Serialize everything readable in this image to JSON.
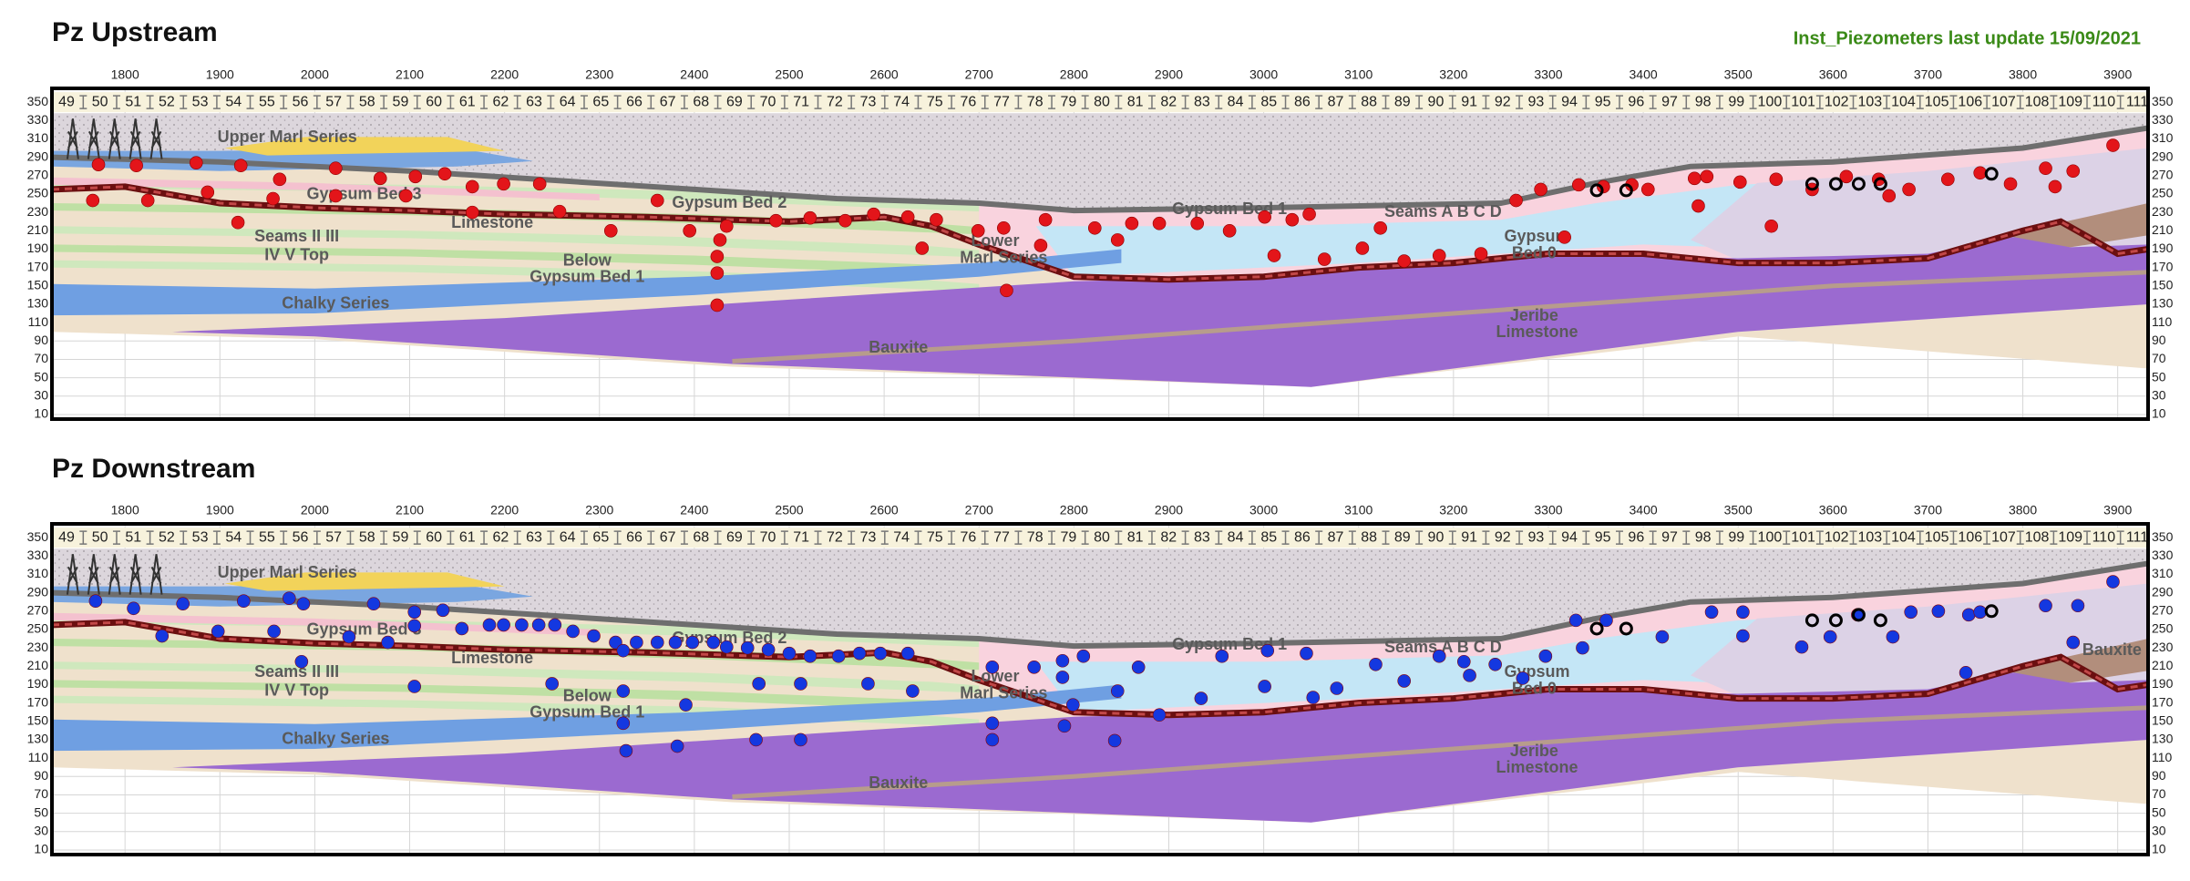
{
  "chart_data": [
    {
      "type": "scatter",
      "title": "Pz Upstream",
      "subtitle": "Inst_Piezometers last update 15/09/2021",
      "xlim": [
        1723,
        3932
      ],
      "xticks": [
        1800,
        1900,
        2000,
        2100,
        2200,
        2300,
        2400,
        2500,
        2600,
        2700,
        2800,
        2900,
        3000,
        3100,
        3200,
        3300,
        3400,
        3500,
        3600,
        3700,
        3800,
        3900
      ],
      "ylim": [
        5,
        365
      ],
      "yticks": [
        350,
        330,
        310,
        290,
        270,
        250,
        230,
        210,
        190,
        170,
        150,
        130,
        110,
        90,
        70,
        50,
        30,
        10
      ],
      "grid": true,
      "stations": [
        49,
        50,
        51,
        52,
        53,
        54,
        55,
        56,
        57,
        58,
        59,
        60,
        61,
        62,
        63,
        64,
        65,
        66,
        67,
        68,
        69,
        70,
        71,
        72,
        73,
        74,
        75,
        76,
        77,
        78,
        79,
        80,
        81,
        82,
        83,
        84,
        85,
        86,
        87,
        88,
        89,
        90,
        91,
        92,
        93,
        94,
        95,
        96,
        97,
        98,
        99,
        100,
        101,
        102,
        103,
        104,
        105,
        106,
        107,
        108,
        109,
        110,
        111
      ],
      "annotations": [
        "Upper Marl Series",
        "Gypsum Bed 3",
        "Limestone",
        "Gypsum Bed 2",
        "Seams II III",
        "IV V Top",
        "Below",
        "Gypsum Bed 1",
        "Chalky Series",
        "Lower",
        "Marl Series",
        "Gypsum Bed 1",
        "Seams A B C D",
        "Gypsum",
        "Bed 0",
        "Jeribe",
        "Limestone",
        "Bauxite"
      ],
      "series": [
        {
          "color": "#e3151a",
          "hollow": false,
          "x": [
            1772,
            1812,
            1875,
            1922,
            1963,
            2022,
            2069,
            2106,
            2137,
            2166,
            2199,
            2237,
            1887,
            1824,
            1766,
            1956,
            1919,
            2022,
            2096,
            2166,
            2258,
            2312,
            2361,
            2395,
            2427,
            2424,
            2424,
            2424,
            2434,
            2486,
            2522,
            2559,
            2589,
            2625,
            2655,
            2640,
            2699,
            2726,
            2765,
            2729,
            2770,
            2822,
            2861,
            2846,
            2890,
            2930,
            2964,
            3001,
            3030,
            3048,
            3011,
            3064,
            3104,
            3123,
            3148,
            3185,
            3229,
            3266,
            3292,
            3317,
            3332,
            3358,
            3388,
            3405,
            3454,
            3467,
            3458,
            3502,
            3540,
            3578,
            3614,
            3648,
            3680,
            3721,
            3755,
            3787,
            3824,
            3853,
            3895,
            3834,
            3659,
            3535
          ],
          "values": [
            282,
            281,
            284,
            281,
            266,
            278,
            267,
            269,
            272,
            258,
            261,
            261,
            252,
            243,
            243,
            245,
            219,
            248,
            248,
            230,
            231,
            210,
            243,
            210,
            200,
            182,
            164,
            129,
            215,
            221,
            224,
            221,
            228,
            225,
            222,
            191,
            210,
            213,
            194,
            145,
            222,
            213,
            218,
            200,
            218,
            218,
            210,
            225,
            222,
            228,
            183,
            179,
            191,
            213,
            177,
            183,
            185,
            243,
            255,
            203,
            260,
            258,
            260,
            255,
            267,
            269,
            237,
            263,
            266,
            255,
            269,
            266,
            255,
            266,
            273,
            261,
            278,
            275,
            303,
            258,
            248,
            215
          ]
        },
        {
          "color": "#000000",
          "hollow": true,
          "x": [
            3351,
            3382,
            3578,
            3603,
            3627,
            3650,
            3767
          ],
          "values": [
            254,
            254,
            261,
            261,
            261,
            261,
            272
          ]
        }
      ]
    },
    {
      "type": "scatter",
      "title": "Pz Downstream",
      "xlim": [
        1723,
        3932
      ],
      "xticks": [
        1800,
        1900,
        2000,
        2100,
        2200,
        2300,
        2400,
        2500,
        2600,
        2700,
        2800,
        2900,
        3000,
        3100,
        3200,
        3300,
        3400,
        3500,
        3600,
        3700,
        3800,
        3900
      ],
      "ylim": [
        5,
        365
      ],
      "yticks": [
        350,
        330,
        310,
        290,
        270,
        250,
        230,
        210,
        190,
        170,
        150,
        130,
        110,
        90,
        70,
        50,
        30,
        10
      ],
      "grid": true,
      "stations": [
        49,
        50,
        51,
        52,
        53,
        54,
        55,
        56,
        57,
        58,
        59,
        60,
        61,
        62,
        63,
        64,
        65,
        66,
        67,
        68,
        69,
        70,
        71,
        72,
        73,
        74,
        75,
        76,
        77,
        78,
        79,
        80,
        81,
        82,
        83,
        84,
        85,
        86,
        87,
        88,
        89,
        90,
        91,
        92,
        93,
        94,
        95,
        96,
        97,
        98,
        99,
        100,
        101,
        102,
        103,
        104,
        105,
        106,
        107,
        108,
        109,
        110,
        111
      ],
      "annotations": [
        "Upper Marl Series",
        "Gypsum Bed 3",
        "Limestone",
        "Gypsum Bed 2",
        "Seams II III",
        "IV V Top",
        "Below",
        "Gypsum Bed 1",
        "Chalky Series",
        "Lower",
        "Marl Series",
        "Gypsum Bed 1",
        "Seams A B C D",
        "Gypsum",
        "Bed 0",
        "Jeribe",
        "Limestone",
        "Bauxite",
        "Bauxite"
      ],
      "series": [
        {
          "color": "#1438e0",
          "hollow": false,
          "x": [
            1769,
            1809,
            1861,
            1925,
            1973,
            1988,
            2062,
            2105,
            2135,
            1839,
            1898,
            1957,
            1986,
            2036,
            2077,
            2105,
            2105,
            2155,
            2184,
            2199,
            2218,
            2236,
            2253,
            2272,
            2294,
            2317,
            2339,
            2361,
            2380,
            2398,
            2420,
            2434,
            2456,
            2478,
            2500,
            2522,
            2552,
            2574,
            2596,
            2625,
            2250,
            2325,
            2325,
            2325,
            2328,
            2382,
            2391,
            2468,
            2465,
            2512,
            2512,
            2583,
            2630,
            2714,
            2758,
            2714,
            2714,
            2788,
            2810,
            2788,
            2799,
            2790,
            2843,
            2868,
            2846,
            2890,
            2934,
            2956,
            3001,
            3004,
            3045,
            3052,
            3077,
            3118,
            3148,
            3185,
            3211,
            3217,
            3244,
            3273,
            3297,
            3329,
            3361,
            3420,
            3472,
            3505,
            3505,
            3567,
            3597,
            3626,
            3663,
            3682,
            3711,
            3743,
            3755,
            3740,
            3824,
            3858,
            3895,
            3853,
            3336
          ],
          "values": [
            281,
            273,
            278,
            281,
            284,
            278,
            278,
            269,
            271,
            243,
            248,
            248,
            215,
            242,
            236,
            254,
            188,
            251,
            255,
            255,
            255,
            255,
            255,
            248,
            243,
            236,
            236,
            236,
            236,
            236,
            236,
            231,
            230,
            228,
            224,
            221,
            221,
            224,
            224,
            224,
            191,
            227,
            183,
            148,
            118,
            123,
            168,
            191,
            130,
            191,
            130,
            191,
            183,
            209,
            209,
            148,
            130,
            216,
            221,
            198,
            168,
            145,
            129,
            209,
            183,
            157,
            175,
            221,
            188,
            227,
            224,
            176,
            186,
            212,
            194,
            221,
            215,
            200,
            212,
            197,
            221,
            260,
            260,
            242,
            269,
            269,
            243,
            231,
            242,
            266,
            242,
            269,
            270,
            266,
            269,
            203,
            276,
            276,
            302,
            236,
            230
          ]
        },
        {
          "color": "#000000",
          "hollow": true,
          "x": [
            3351,
            3382,
            3578,
            3603,
            3627,
            3650,
            3767
          ],
          "values": [
            251,
            251,
            260,
            260,
            266,
            260,
            270
          ]
        }
      ]
    }
  ]
}
